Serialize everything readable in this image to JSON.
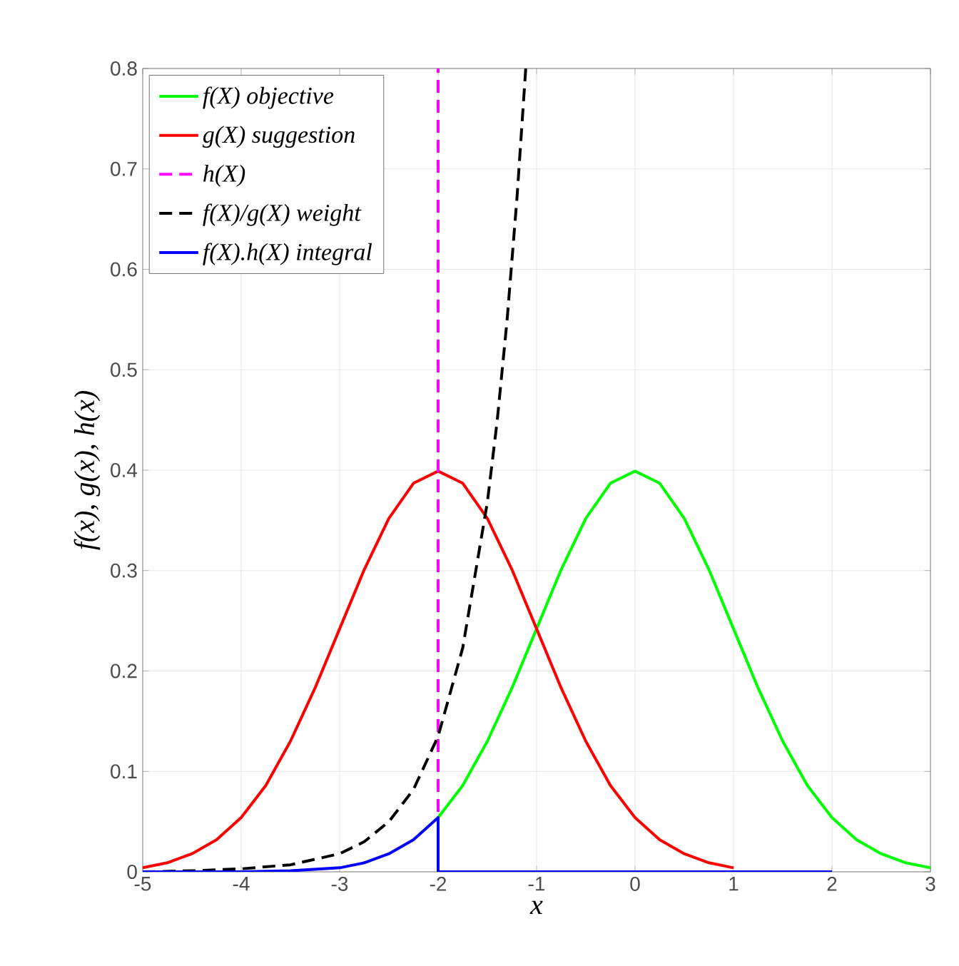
{
  "chart_data": {
    "type": "line",
    "xlabel": "x",
    "ylabel": "f(x), g(x), h(x)",
    "xlim": [
      -5,
      3
    ],
    "ylim": [
      0,
      0.8
    ],
    "xticks": [
      -5,
      -4,
      -3,
      -2,
      -1,
      0,
      1,
      2,
      3
    ],
    "yticks": [
      0,
      0.1,
      0.2,
      0.3,
      0.4,
      0.5,
      0.6,
      0.7,
      0.8
    ],
    "grid": true,
    "legend": "top left",
    "line_style": "solid",
    "series": [
      {
        "name": "f(X) objective",
        "color": "#00ff00",
        "x": [
          -2,
          -1.75,
          -1.5,
          -1.25,
          -1,
          -0.75,
          -0.5,
          -0.25,
          0,
          0.25,
          0.5,
          0.75,
          1,
          1.25,
          1.5,
          1.75,
          2,
          2.25,
          2.5,
          2.75,
          3
        ],
        "values": [
          0.054,
          0.086,
          0.13,
          0.183,
          0.242,
          0.301,
          0.352,
          0.387,
          0.399,
          0.387,
          0.352,
          0.301,
          0.242,
          0.183,
          0.13,
          0.086,
          0.054,
          0.032,
          0.018,
          0.009,
          0.004
        ]
      },
      {
        "name": "g(X) suggestion",
        "color": "#ff0000",
        "x": [
          -5,
          -4.75,
          -4.5,
          -4.25,
          -4,
          -3.75,
          -3.5,
          -3.25,
          -3,
          -2.75,
          -2.5,
          -2.25,
          -2,
          -1.75,
          -1.5,
          -1.25,
          -1,
          -0.75,
          -0.5,
          -0.25,
          0,
          0.25,
          0.5,
          0.75,
          1
        ],
        "values": [
          0.004,
          0.009,
          0.018,
          0.032,
          0.054,
          0.086,
          0.13,
          0.183,
          0.242,
          0.301,
          0.352,
          0.387,
          0.399,
          0.387,
          0.352,
          0.301,
          0.242,
          0.183,
          0.13,
          0.086,
          0.054,
          0.032,
          0.018,
          0.009,
          0.004
        ]
      },
      {
        "name": "h(X)",
        "color": "#ff00ff",
        "line_style": "dashed",
        "x": [
          -2,
          -2
        ],
        "values": [
          0,
          0.8
        ]
      },
      {
        "name": "f(X)/g(X) weight",
        "color": "#000000",
        "line_style": "dashed",
        "x": [
          -5,
          -4.5,
          -4,
          -3.5,
          -3,
          -2.75,
          -2.5,
          -2.25,
          -2,
          -1.75,
          -1.5,
          -1.4,
          -1.3,
          -1.2,
          -1.11
        ],
        "values": [
          0.0,
          0.001,
          0.003,
          0.007,
          0.018,
          0.03,
          0.05,
          0.082,
          0.135,
          0.223,
          0.368,
          0.449,
          0.549,
          0.67,
          0.8
        ]
      },
      {
        "name": "f(X).h(X) integral",
        "color": "#0000ff",
        "x": [
          -5,
          -4.5,
          -4,
          -3.5,
          -3,
          -2.75,
          -2.5,
          -2.25,
          -2,
          -2,
          2
        ],
        "values": [
          0.0,
          0.0,
          0.0,
          0.001,
          0.004,
          0.009,
          0.018,
          0.032,
          0.054,
          0,
          0
        ]
      }
    ]
  }
}
